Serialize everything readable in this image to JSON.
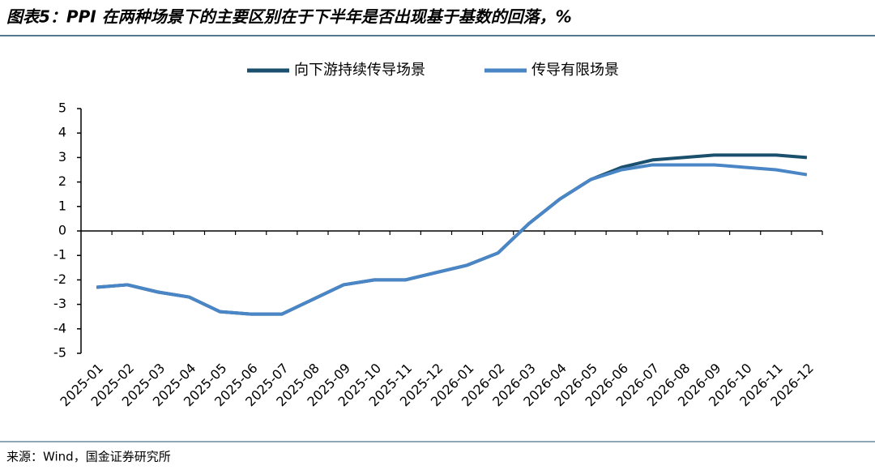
{
  "chart_data": {
    "type": "line",
    "title": "图表5：PPI 在两种场景下的主要区别在于下半年是否出现基于基数的回落，%",
    "source": "来源：Wind，国金证券研究所",
    "categories": [
      "2025-01",
      "2025-02",
      "2025-03",
      "2025-04",
      "2025-05",
      "2025-06",
      "2025-07",
      "2025-08",
      "2025-09",
      "2025-10",
      "2025-11",
      "2025-12",
      "2026-01",
      "2026-02",
      "2026-03",
      "2026-04",
      "2026-05",
      "2026-06",
      "2026-07",
      "2026-08",
      "2026-09",
      "2026-10",
      "2026-11",
      "2026-12"
    ],
    "series": [
      {
        "name": "向下游持续传导场景",
        "color": "#1b4f6e",
        "values": [
          -2.3,
          -2.2,
          -2.5,
          -2.7,
          -3.3,
          -3.4,
          -3.4,
          -2.8,
          -2.2,
          -2.0,
          -2.0,
          -1.7,
          -1.4,
          -0.9,
          0.3,
          1.3,
          2.1,
          2.6,
          2.9,
          3.0,
          3.1,
          3.1,
          3.1,
          3.0
        ]
      },
      {
        "name": "传导有限场景",
        "color": "#4a86c5",
        "values": [
          -2.3,
          -2.2,
          -2.5,
          -2.7,
          -3.3,
          -3.4,
          -3.4,
          -2.8,
          -2.2,
          -2.0,
          -2.0,
          -1.7,
          -1.4,
          -0.9,
          0.3,
          1.3,
          2.1,
          2.5,
          2.7,
          2.7,
          2.7,
          2.6,
          2.5,
          2.3
        ]
      }
    ],
    "ylim": [
      -5,
      5
    ],
    "yticks": [
      -5,
      -4,
      -3,
      -2,
      -1,
      0,
      1,
      2,
      3,
      4,
      5
    ],
    "legend": "top"
  }
}
